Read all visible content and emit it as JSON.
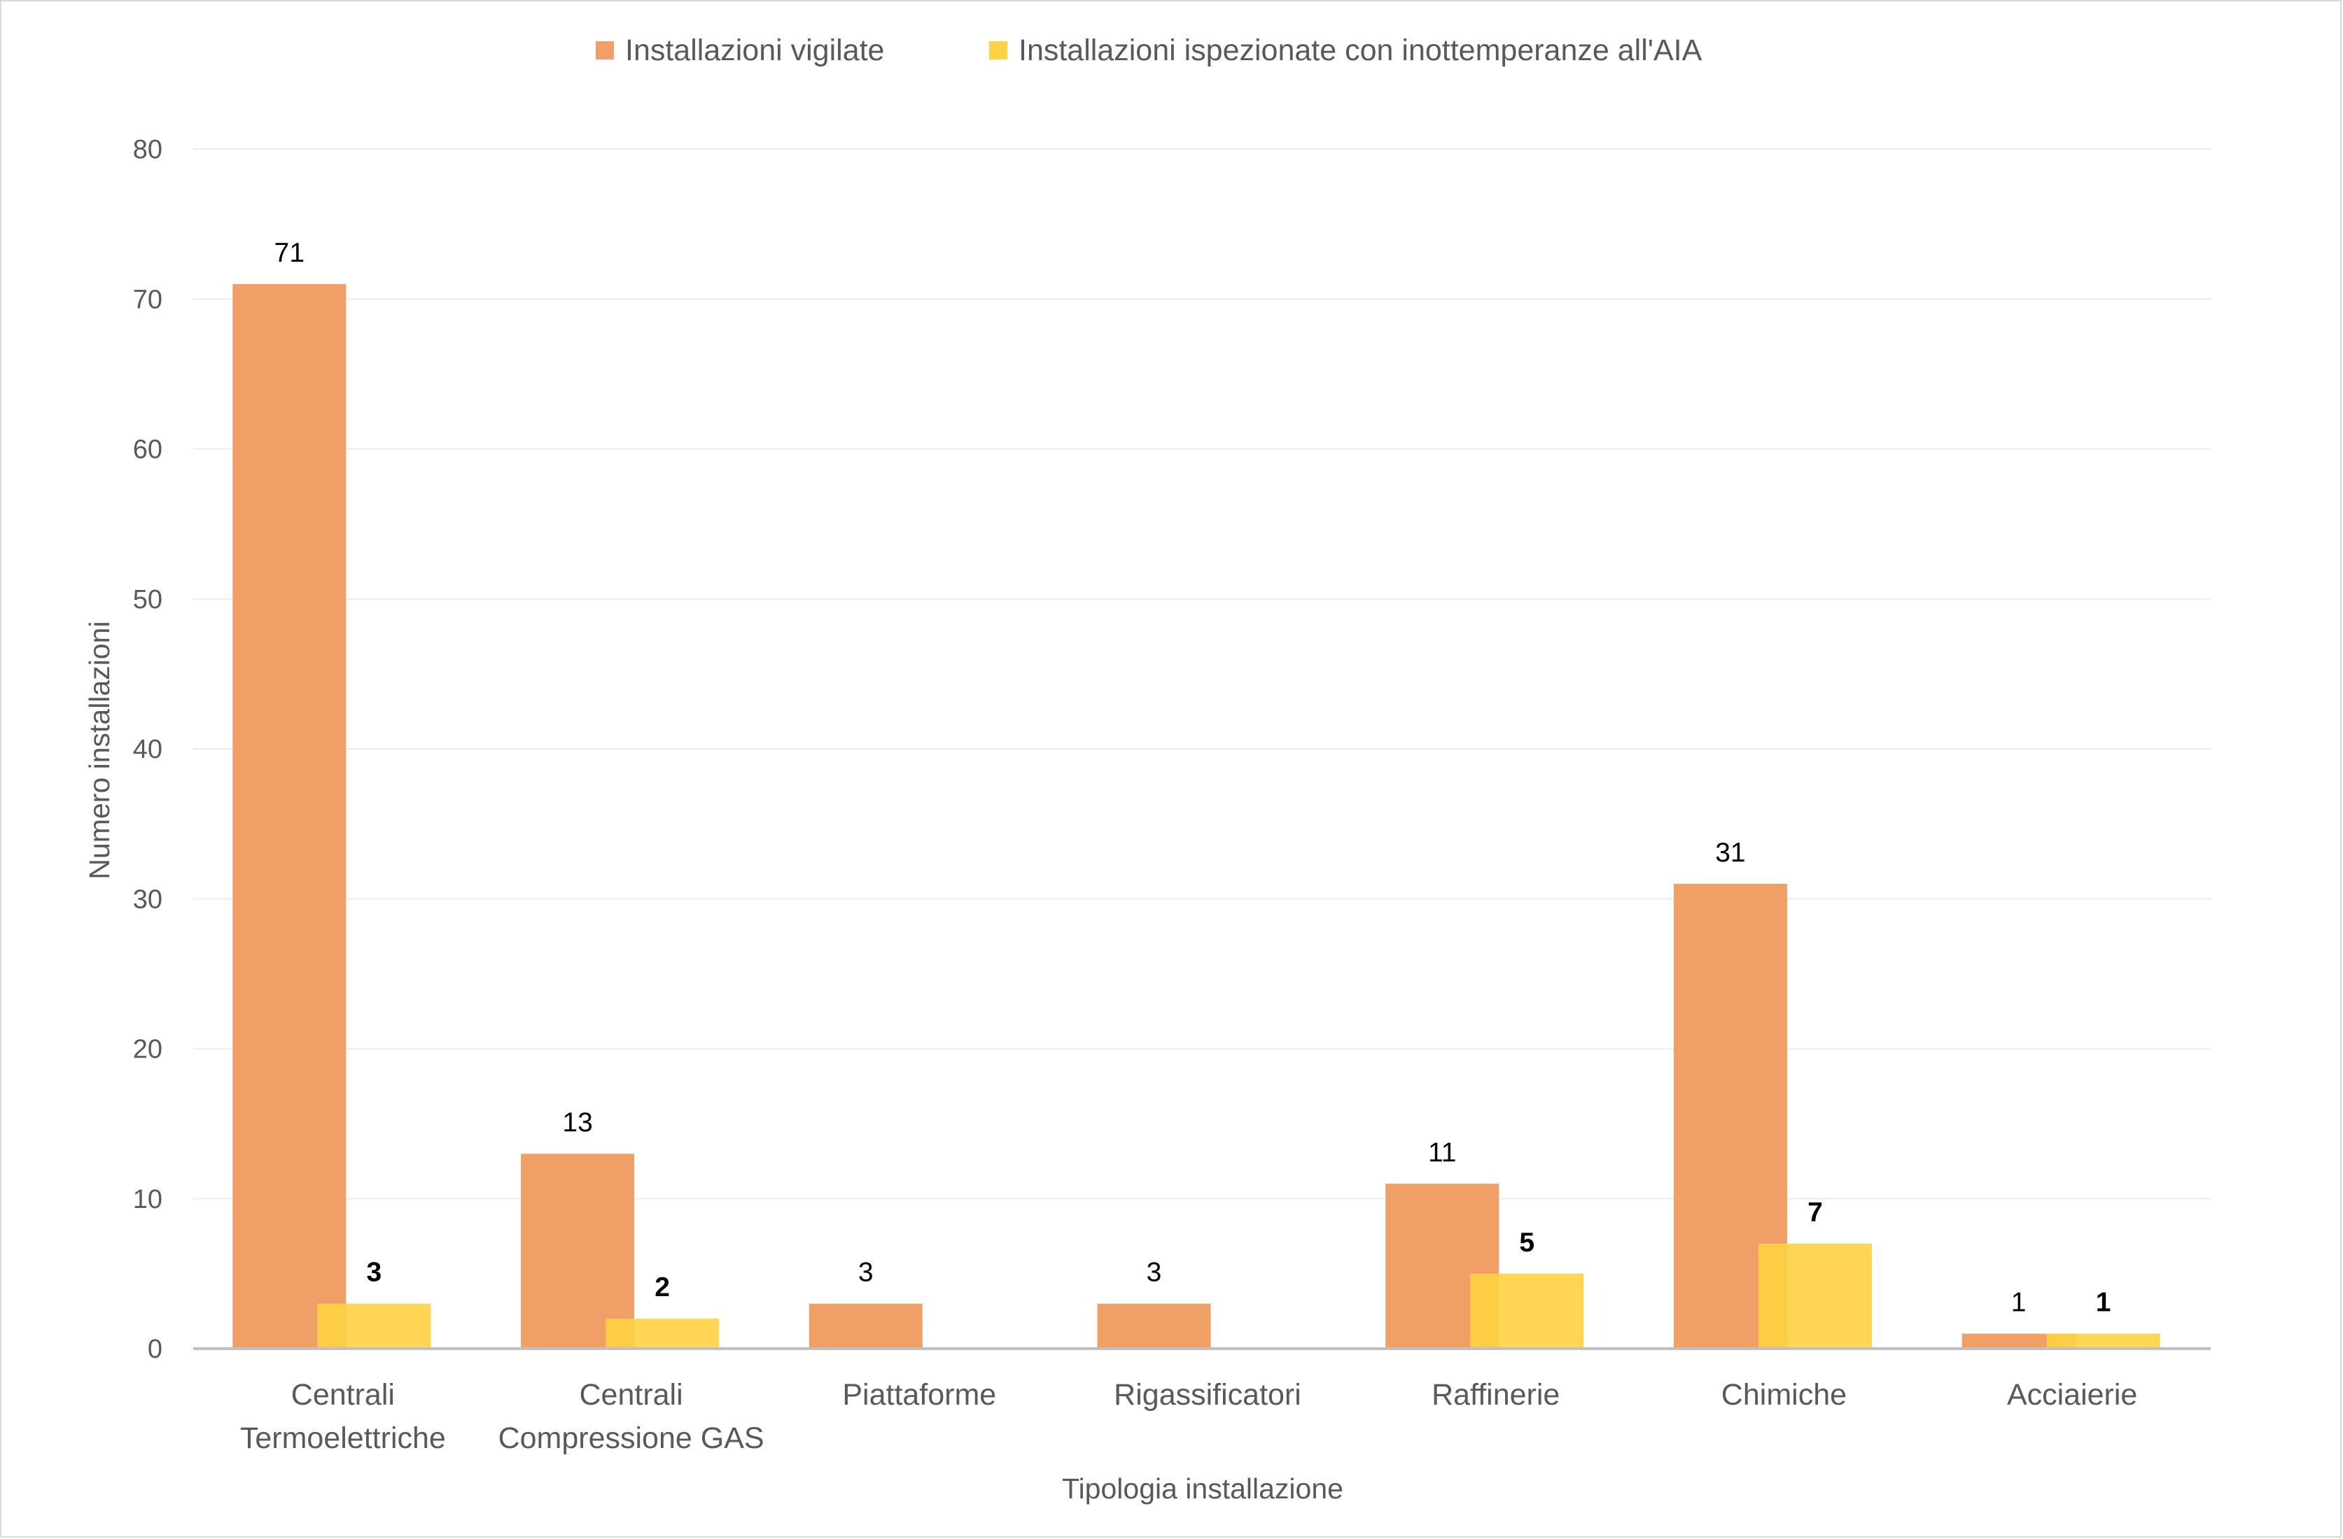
{
  "chart_data": {
    "type": "bar",
    "categories": [
      [
        "Centrali",
        "Termoelettriche"
      ],
      [
        "Centrali",
        "Compressione GAS"
      ],
      [
        "Piattaforme"
      ],
      [
        "Rigassificatori"
      ],
      [
        "Raffinerie"
      ],
      [
        "Chimiche"
      ],
      [
        "Acciaierie"
      ]
    ],
    "series": [
      {
        "name": "Installazioni vigilate",
        "color": "#f0a066",
        "values": [
          71,
          13,
          3,
          3,
          11,
          31,
          1
        ],
        "labels": [
          "71",
          "13",
          "3",
          "3",
          "11",
          "31",
          "1"
        ],
        "label_bold": false
      },
      {
        "name": "Installazioni ispezionate con inottemperanze all'AIA",
        "color": "#fed241",
        "values": [
          3,
          2,
          null,
          null,
          5,
          7,
          1
        ],
        "labels": [
          "3",
          "2",
          "",
          "",
          "5",
          "7",
          "1"
        ],
        "label_bold": true
      }
    ],
    "xlabel": "Tipologia installazione",
    "ylabel": "Numero installazioni",
    "ylim": [
      0,
      80
    ],
    "yticks": [
      "0",
      "10",
      "20",
      "30",
      "40",
      "50",
      "60",
      "70",
      "80"
    ],
    "grid": true,
    "legend_position": "top"
  }
}
